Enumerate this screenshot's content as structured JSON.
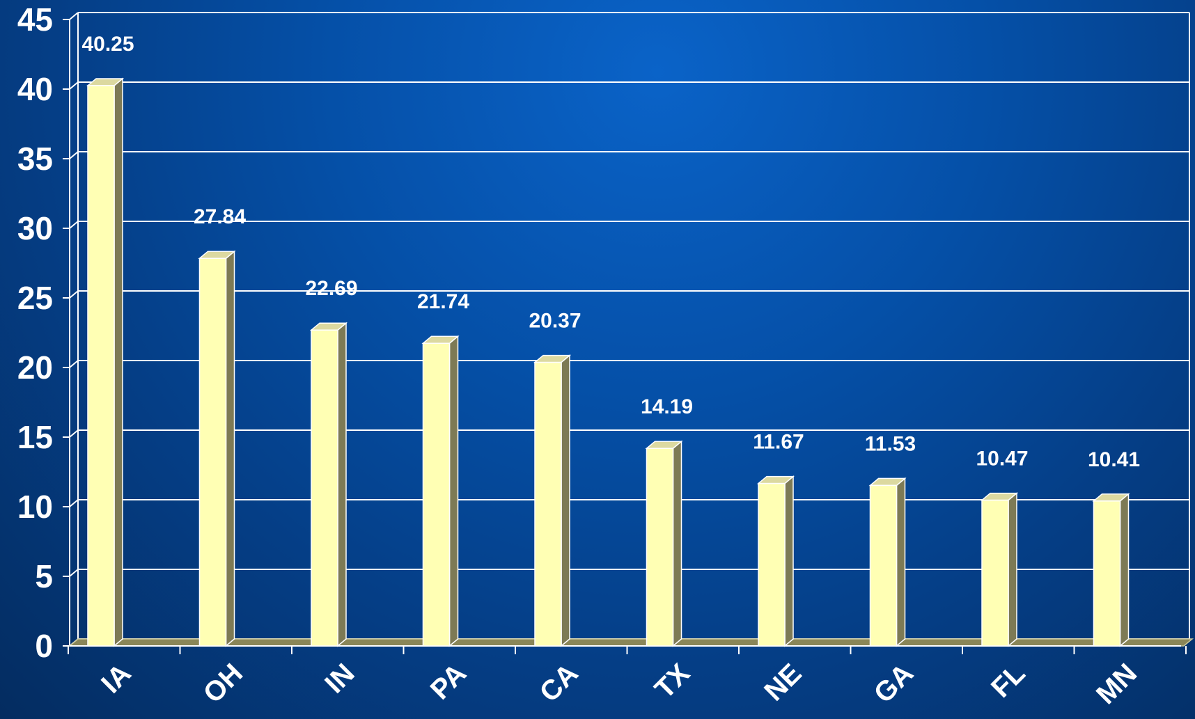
{
  "chart_data": {
    "type": "bar",
    "categories": [
      "IA",
      "OH",
      "IN",
      "PA",
      "CA",
      "TX",
      "NE",
      "GA",
      "FL",
      "MN"
    ],
    "values": [
      40.25,
      27.84,
      22.69,
      21.74,
      20.37,
      14.19,
      11.67,
      11.53,
      10.47,
      10.41
    ],
    "value_labels": [
      "40.25",
      "27.84",
      "22.69",
      "21.74",
      "20.37",
      "14.19",
      "11.67",
      "11.53",
      "10.47",
      "10.41"
    ],
    "yticks": [
      "0",
      "5",
      "10",
      "15",
      "20",
      "25",
      "30",
      "35",
      "40",
      "45"
    ],
    "ylim": [
      0,
      45
    ],
    "grid": true,
    "bar_style": "3d",
    "colors": {
      "bar_face": "#ffffb4",
      "bar_side": "#7d7a55",
      "bar_top": "#dcd9a0",
      "grid": "#ffffff",
      "axis_floor": "#8a8658",
      "text": "#ffffff"
    }
  }
}
